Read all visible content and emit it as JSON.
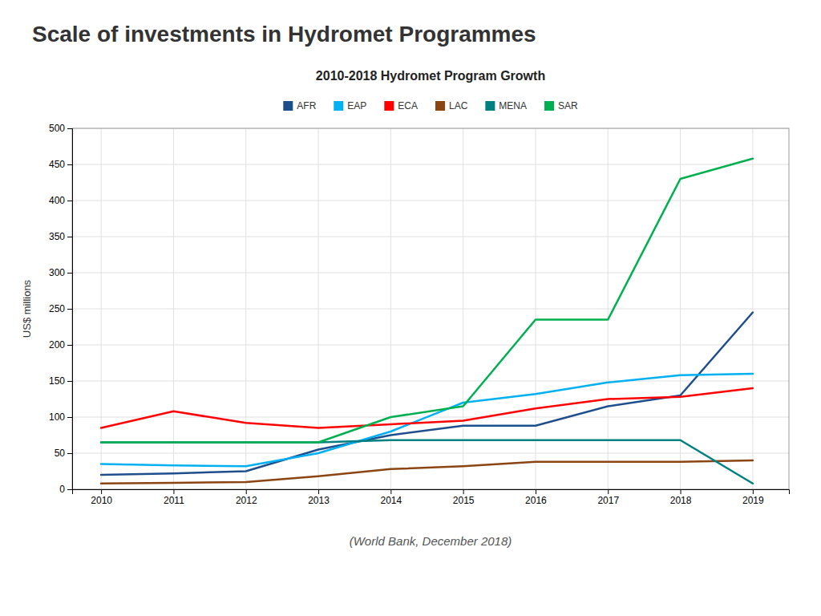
{
  "chart_data": {
    "type": "line",
    "title": "Scale of investments in Hydromet Programmes",
    "subtitle": "2010-2018 Hydromet Program Growth",
    "y_label": "US$ millions",
    "annotations": [
      "(World Bank, December 2018)"
    ],
    "x": [
      2010,
      2011,
      2012,
      2013,
      2014,
      2015,
      2016,
      2017,
      2018,
      2019
    ],
    "series": [
      {
        "name": "AFR",
        "color": "#1F4E8C",
        "values": [
          20,
          22,
          25,
          55,
          75,
          88,
          88,
          115,
          130,
          245
        ]
      },
      {
        "name": "EAP",
        "color": "#00B0F0",
        "values": [
          35,
          33,
          32,
          50,
          80,
          120,
          132,
          148,
          158,
          160
        ]
      },
      {
        "name": "ECA",
        "color": "#FF0000",
        "values": [
          85,
          108,
          92,
          85,
          90,
          95,
          112,
          125,
          128,
          140
        ]
      },
      {
        "name": "LAC",
        "color": "#8B4513",
        "values": [
          8,
          9,
          10,
          18,
          28,
          32,
          38,
          38,
          38,
          40
        ]
      },
      {
        "name": "MENA",
        "color": "#008080",
        "values": [
          65,
          65,
          65,
          65,
          68,
          68,
          68,
          68,
          68,
          8
        ]
      },
      {
        "name": "SAR",
        "color": "#00B050",
        "values": [
          65,
          65,
          65,
          65,
          100,
          115,
          235,
          235,
          430,
          458
        ]
      }
    ],
    "xlim": [
      2009.6,
      2019.5
    ],
    "xticks": [
      2010,
      2011,
      2012,
      2013,
      2014,
      2015,
      2016,
      2017,
      2018,
      2019
    ],
    "ylim": [
      0,
      500
    ],
    "yticks": [
      0,
      50,
      100,
      150,
      200,
      250,
      300,
      350,
      400,
      450,
      500
    ],
    "grid": true,
    "legend": "top"
  }
}
